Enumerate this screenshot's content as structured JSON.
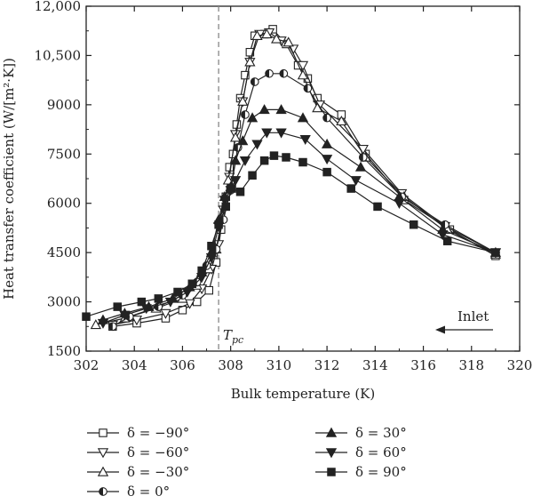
{
  "chart_data": {
    "type": "line",
    "title": "",
    "xlabel": "Bulk temperature (K)",
    "ylabel": "Heat transfer coefficient (W/[m²·K])",
    "xlim": [
      302,
      320
    ],
    "ylim": [
      1500,
      12000
    ],
    "x_ticks": [
      "302",
      "304",
      "306",
      "308",
      "310",
      "312",
      "314",
      "316",
      "318",
      "320"
    ],
    "y_ticks": [
      "1500",
      "3000",
      "4500",
      "6000",
      "7500",
      "9000",
      "10,500",
      "12,000"
    ],
    "grid": false,
    "legend_position": "bottom",
    "annotations": {
      "tpc_label": "T",
      "tpc_subscript": "pc",
      "tpc_x": 307.5,
      "inlet_label": "Inlet"
    },
    "series": [
      {
        "name": "δ = −90°",
        "marker": "square-open",
        "x": [
          303.1,
          304.1,
          305.3,
          306.0,
          306.6,
          307.1,
          307.4,
          307.6,
          307.8,
          307.95,
          308.1,
          308.25,
          308.4,
          308.6,
          308.8,
          309.0,
          309.4,
          309.75,
          310.3,
          310.8,
          311.2,
          311.6,
          312.6,
          313.6,
          315.2,
          317.1,
          319.0
        ],
        "y": [
          2250,
          2350,
          2500,
          2750,
          3000,
          3350,
          4200,
          5200,
          6200,
          7100,
          7500,
          8400,
          9200,
          9900,
          10600,
          11100,
          11150,
          11300,
          10850,
          10200,
          9800,
          9200,
          8700,
          7500,
          6100,
          5200,
          4400
        ]
      },
      {
        "name": "δ = −60°",
        "marker": "triangle-down-open",
        "x": [
          303.1,
          304.1,
          305.3,
          306.3,
          306.8,
          307.2,
          307.5,
          307.7,
          307.95,
          308.2,
          308.5,
          308.8,
          309.2,
          309.6,
          310.1,
          310.6,
          311.0,
          311.7,
          313.5,
          315.1,
          316.9,
          319.0
        ],
        "y": [
          2300,
          2450,
          2650,
          2950,
          3400,
          4000,
          4750,
          5800,
          6800,
          8100,
          9100,
          10300,
          11150,
          11200,
          10950,
          10700,
          10200,
          9000,
          7650,
          6300,
          5300,
          4500
        ]
      },
      {
        "name": "δ = −30°",
        "marker": "triangle-up-open",
        "x": [
          302.4,
          303.6,
          304.9,
          306.0,
          306.6,
          307.1,
          307.4,
          307.65,
          307.9,
          308.2,
          308.5,
          308.8,
          309.1,
          309.5,
          309.9,
          310.4,
          311.0,
          311.6,
          312.6,
          313.6,
          315.2,
          317.0,
          319.0
        ],
        "y": [
          2300,
          2500,
          2800,
          3100,
          3500,
          4000,
          4600,
          5600,
          6700,
          8000,
          9100,
          10300,
          11100,
          11150,
          11000,
          10900,
          9900,
          8900,
          8500,
          7400,
          6200,
          5200,
          4450
        ]
      },
      {
        "name": "δ = 0°",
        "marker": "circle-half",
        "x": [
          303.1,
          303.8,
          305.0,
          306.0,
          306.6,
          307.0,
          307.4,
          307.7,
          308.0,
          308.3,
          308.6,
          309.0,
          309.6,
          310.2,
          311.2,
          312.0,
          313.5,
          315.1,
          316.9,
          319.0
        ],
        "y": [
          2250,
          2550,
          2850,
          3200,
          3600,
          4100,
          4600,
          5500,
          6400,
          7700,
          8700,
          9700,
          9950,
          9950,
          9500,
          8600,
          7400,
          6200,
          5350,
          4500
        ]
      },
      {
        "name": "δ = 30°",
        "marker": "triangle-up-filled",
        "x": [
          302.7,
          303.6,
          304.6,
          305.6,
          306.3,
          306.8,
          307.2,
          307.5,
          307.75,
          308.0,
          308.2,
          308.5,
          308.9,
          309.4,
          310.1,
          311.0,
          312.0,
          313.4,
          315.0,
          316.8,
          319.0
        ],
        "y": [
          2450,
          2650,
          2850,
          3100,
          3450,
          3900,
          4500,
          5500,
          6200,
          6500,
          7300,
          7900,
          8600,
          8850,
          8850,
          8600,
          7800,
          7100,
          6200,
          5200,
          4500
        ]
      },
      {
        "name": "δ = 60°",
        "marker": "triangle-down-filled",
        "x": [
          302.7,
          303.6,
          304.5,
          305.5,
          306.2,
          306.8,
          307.2,
          307.5,
          307.75,
          308.0,
          308.2,
          308.6,
          309.1,
          309.5,
          310.1,
          311.1,
          312.0,
          313.2,
          315.0,
          316.8,
          319.0
        ],
        "y": [
          2350,
          2600,
          2800,
          3000,
          3300,
          3750,
          4350,
          5300,
          6100,
          6400,
          6700,
          7300,
          7800,
          8150,
          8150,
          7950,
          7350,
          6700,
          6000,
          5050,
          4500
        ]
      },
      {
        "name": "δ = 90°",
        "marker": "square-filled",
        "x": [
          302.0,
          303.3,
          304.3,
          305.0,
          305.8,
          306.4,
          306.8,
          307.2,
          307.5,
          307.8,
          308.05,
          308.4,
          308.9,
          309.4,
          309.8,
          310.3,
          311.0,
          312.0,
          313.0,
          314.1,
          315.6,
          317.0,
          319.0
        ],
        "y": [
          2550,
          2850,
          3000,
          3100,
          3300,
          3550,
          3950,
          4700,
          5350,
          5900,
          6450,
          6350,
          6850,
          7300,
          7450,
          7400,
          7250,
          6950,
          6450,
          5900,
          5350,
          4850,
          4500
        ]
      }
    ]
  }
}
